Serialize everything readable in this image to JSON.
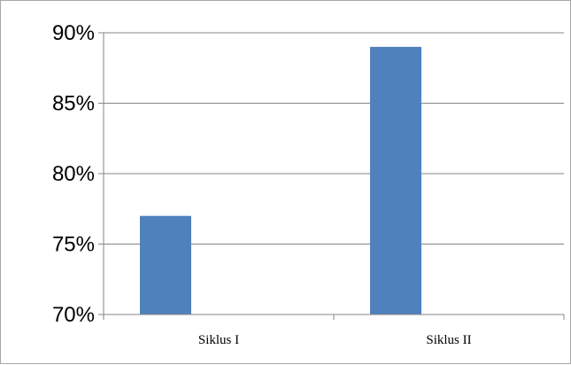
{
  "chart_data": {
    "type": "bar",
    "categories": [
      "Siklus I",
      "Siklus II"
    ],
    "values": [
      77,
      89
    ],
    "ytick_labels": [
      "70%",
      "75%",
      "80%",
      "85%",
      "90%"
    ],
    "ylim": [
      70,
      90
    ],
    "ytick_step": 5,
    "unit": "%",
    "grid": true,
    "legend": "none",
    "colors": {
      "bar": "#4f81bd",
      "grid": "#868686",
      "axis": "#868686",
      "frame": "#a6a6a6"
    }
  }
}
